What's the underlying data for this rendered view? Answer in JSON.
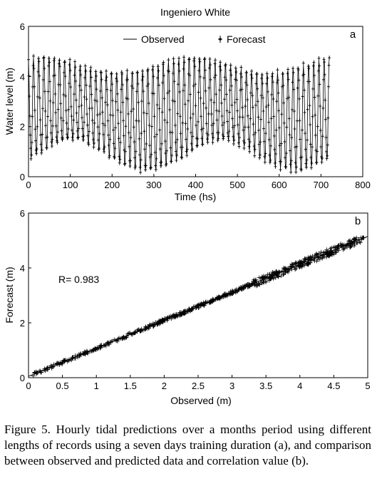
{
  "figure": {
    "caption": "Figure 5. Hourly tidal predictions over a months period using different lengths of records using a seven days training duration (a), and comparison between observed and predicted data and correlation value (b)."
  },
  "chart_data": [
    {
      "type": "line",
      "panel": "a",
      "title": "Ingeniero White",
      "xlabel": "Time (hs)",
      "ylabel": "Water level (m)",
      "xlim": [
        0,
        800
      ],
      "ylim": [
        0,
        6
      ],
      "xticks": [
        0,
        100,
        200,
        300,
        400,
        500,
        600,
        700,
        800
      ],
      "yticks": [
        0,
        2,
        4,
        6
      ],
      "grid": false,
      "legend": "top",
      "series": [
        {
          "name": "Observed",
          "style": "line",
          "model": "semidiurnal tide",
          "t_start": 0,
          "t_end": 720,
          "step": 1,
          "mean": 2.55,
          "amp_M2": 1.75,
          "period_M2": 12.42,
          "amp_S2": 0.3,
          "period_S2": 12.0,
          "amp_M4": 0.25,
          "period_M4": 6.21
        },
        {
          "name": "Forecast",
          "style": "marker",
          "model": "semidiurnal tide",
          "t_start": 0,
          "t_end": 720,
          "step": 1
        }
      ]
    },
    {
      "type": "scatter",
      "panel": "b",
      "title": "",
      "xlabel": "Observed (m)",
      "ylabel": "Forecast (m)",
      "xlim": [
        0,
        5
      ],
      "ylim": [
        0,
        6
      ],
      "xticks": [
        0,
        0.5,
        1,
        1.5,
        2,
        2.5,
        3,
        3.5,
        4,
        4.5,
        5
      ],
      "yticks": [
        0,
        2,
        4,
        6
      ],
      "annotation": "R= 0.983",
      "regression_line": {
        "x": [
          0,
          5
        ],
        "y": [
          0.05,
          5.15
        ]
      },
      "points_range": {
        "x": [
          0.05,
          4.95
        ],
        "y": [
          0.05,
          5.05
        ]
      },
      "grid": false
    }
  ]
}
